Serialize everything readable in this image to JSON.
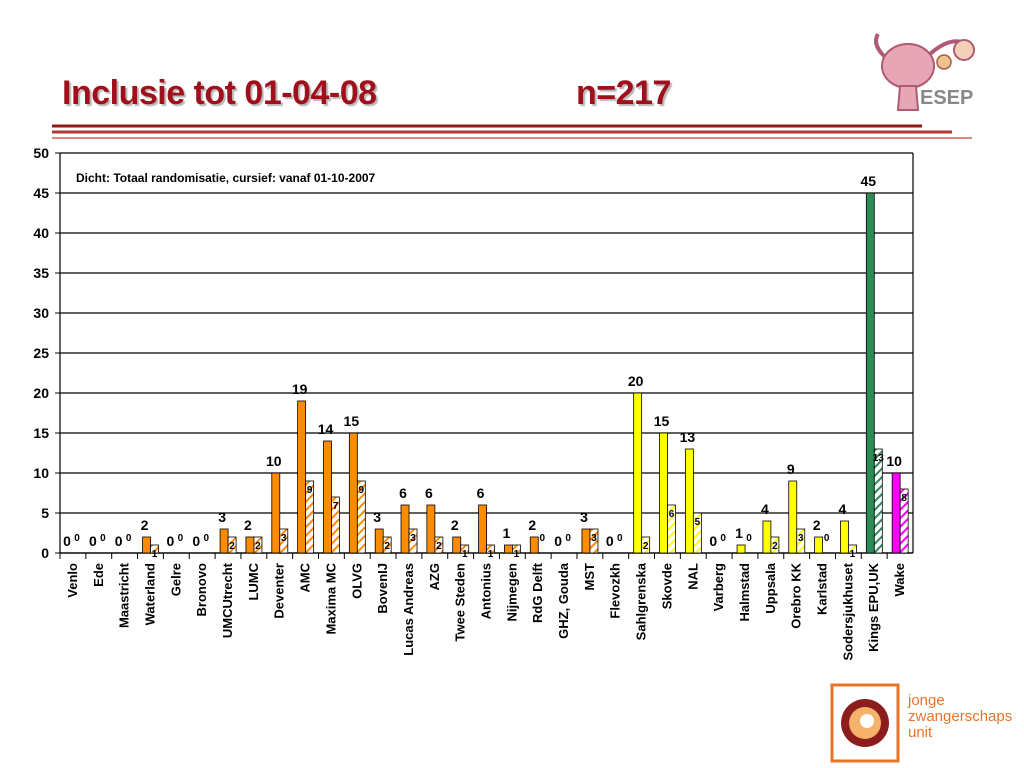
{
  "slide": {
    "title": "Inclusie tot 01-04-08",
    "n_label": "n=217"
  },
  "logos": {
    "esep": "ESEP",
    "jzu": [
      "jonge",
      "zwangerschaps",
      "unit"
    ]
  },
  "colors": {
    "title": "#a0101c",
    "rules": [
      "#8b1a1a",
      "#b33a3a",
      "#d88a8a"
    ],
    "netherlands": "#ff8c00",
    "sweden": "#ffff00",
    "uk": "#2e8b57",
    "usa": "#ff00ff"
  },
  "chart_data": {
    "type": "bar",
    "annotation": "Dicht: Totaal randomisatie, cursief: vanaf 01-10-2007",
    "ylim": [
      0,
      50
    ],
    "yticks": [
      0,
      5,
      10,
      15,
      20,
      25,
      30,
      35,
      40,
      45,
      50
    ],
    "grid": true,
    "categories": [
      "Venlo",
      "Ede",
      "Maastricht",
      "Waterland",
      "Gelre",
      "Bronovo",
      "UMCUtrecht",
      "LUMC",
      "Deventer",
      "AMC",
      "Maxima MC",
      "OLVG",
      "BovenIJ",
      "Lucas Andreas",
      "AZG",
      "Twee Steden",
      "Antonius",
      "Nijmegen",
      "RdG Delft",
      "GHZ, Gouda",
      "MST",
      "Flevozkh",
      "Sahlgrenska",
      "Skovde",
      "NAL",
      "Varberg",
      "Halmstad",
      "Uppsala",
      "Orebro KK",
      "Karlstad",
      "Sodersjukhuset",
      "Kings EPU,UK",
      "Wake"
    ],
    "series": [
      {
        "values": [
          0,
          0,
          0,
          2,
          0,
          0,
          3,
          2,
          10,
          19,
          14,
          15,
          3,
          6,
          6,
          2,
          6,
          1,
          2,
          0,
          3,
          0,
          20,
          15,
          13,
          0,
          1,
          4,
          9,
          2,
          4,
          45,
          10
        ]
      },
      {
        "values": [
          0,
          0,
          0,
          1,
          0,
          0,
          2,
          2,
          3,
          9,
          7,
          9,
          2,
          3,
          2,
          1,
          1,
          1,
          0,
          0,
          3,
          0,
          2,
          6,
          5,
          0,
          0,
          2,
          3,
          0,
          1,
          13,
          8
        ]
      }
    ],
    "bar_colors": [
      "#ff8c00",
      "#ff8c00",
      "#ff8c00",
      "#ff8c00",
      "#ff8c00",
      "#ff8c00",
      "#ff8c00",
      "#ff8c00",
      "#ff8c00",
      "#ff8c00",
      "#ff8c00",
      "#ff8c00",
      "#ff8c00",
      "#ff8c00",
      "#ff8c00",
      "#ff8c00",
      "#ff8c00",
      "#ff8c00",
      "#ff8c00",
      "#ff8c00",
      "#ff8c00",
      "#ff8c00",
      "#ffff00",
      "#ffff00",
      "#ffff00",
      "#ffff00",
      "#ffff00",
      "#ffff00",
      "#ffff00",
      "#ffff00",
      "#ffff00",
      "#2e8b57",
      "#ff00ff"
    ]
  }
}
